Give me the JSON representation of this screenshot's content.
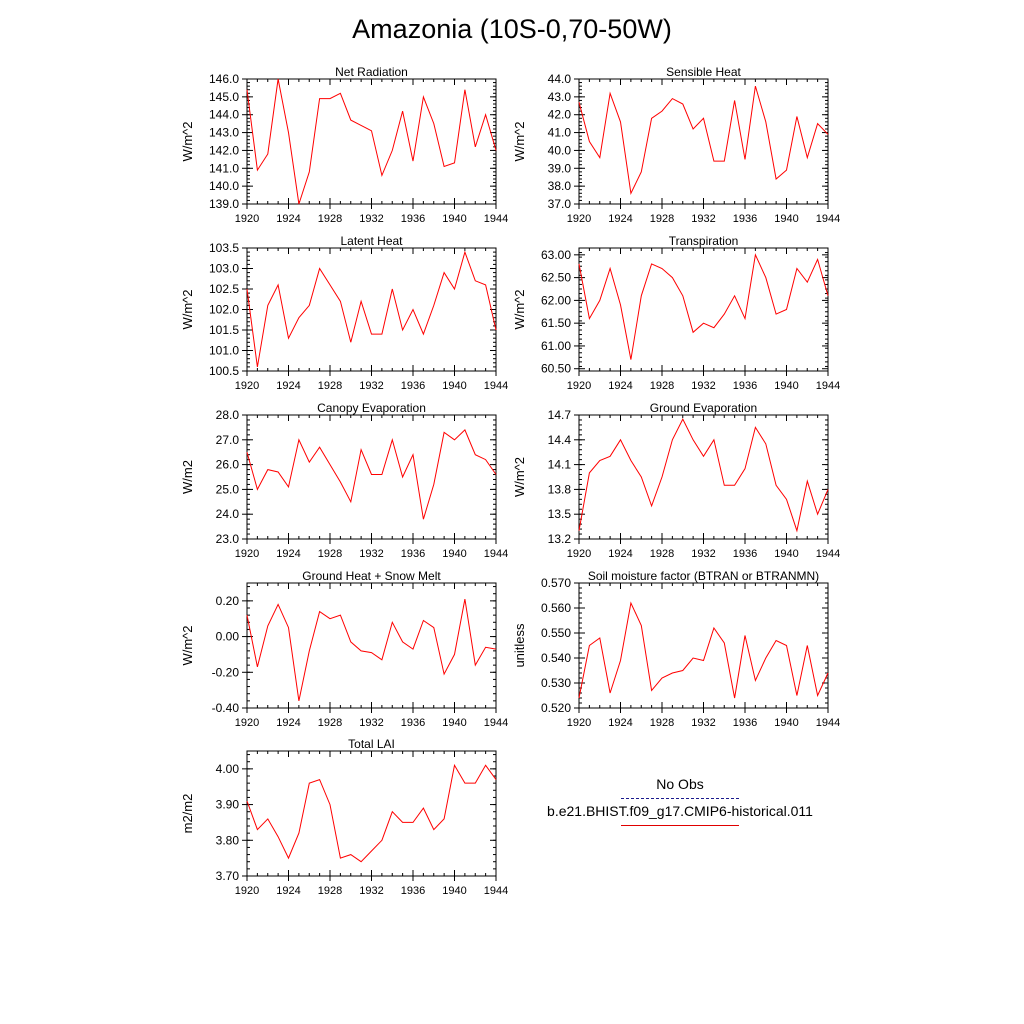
{
  "title": "Amazonia (10S-0,70-50W)",
  "line_color": "#ff0000",
  "obs_color": "#1a1a8c",
  "legend": {
    "obs_label": "No Obs",
    "model_label": "b.e21.BHIST.f09_g17.CMIP6-historical.011"
  },
  "chart_data": [
    {
      "type": "line",
      "title": "Net Radiation",
      "ylabel": "W/m^2",
      "xlim": [
        1920,
        1944
      ],
      "ylim": [
        139.0,
        146.0
      ],
      "xticks": [
        "1920",
        "1924",
        "1928",
        "1932",
        "1936",
        "1940",
        "1944"
      ],
      "yticks": [
        "146.0",
        "145.0",
        "144.0",
        "143.0",
        "142.0",
        "141.0",
        "140.0",
        "139.0"
      ],
      "ytick_values": [
        146,
        145,
        144,
        143,
        142,
        141,
        140,
        139
      ],
      "x": [
        1920,
        1921,
        1922,
        1923,
        1924,
        1925,
        1926,
        1927,
        1928,
        1929,
        1930,
        1931,
        1932,
        1933,
        1934,
        1935,
        1936,
        1937,
        1938,
        1939,
        1940,
        1941,
        1942,
        1943,
        1944
      ],
      "values": [
        145.4,
        140.9,
        141.8,
        146.0,
        143.0,
        139.0,
        140.8,
        144.9,
        144.9,
        145.2,
        143.7,
        143.4,
        143.1,
        140.6,
        142.0,
        144.2,
        141.4,
        145.0,
        143.5,
        141.1,
        141.3,
        145.4,
        142.2,
        144.0,
        142.0
      ]
    },
    {
      "type": "line",
      "title": "Sensible Heat",
      "ylabel": "W/m^2",
      "xlim": [
        1920,
        1944
      ],
      "ylim": [
        37.0,
        44.0
      ],
      "xticks": [
        "1920",
        "1924",
        "1928",
        "1932",
        "1936",
        "1940",
        "1944"
      ],
      "yticks": [
        "44.0",
        "43.0",
        "42.0",
        "41.0",
        "40.0",
        "39.0",
        "38.0",
        "37.0"
      ],
      "ytick_values": [
        44,
        43,
        42,
        41,
        40,
        39,
        38,
        37
      ],
      "x": [
        1920,
        1921,
        1922,
        1923,
        1924,
        1925,
        1926,
        1927,
        1928,
        1929,
        1930,
        1931,
        1932,
        1933,
        1934,
        1935,
        1936,
        1937,
        1938,
        1939,
        1940,
        1941,
        1942,
        1943,
        1944
      ],
      "values": [
        42.7,
        40.5,
        39.6,
        43.2,
        41.6,
        37.6,
        38.8,
        41.8,
        42.2,
        42.9,
        42.6,
        41.2,
        41.8,
        39.4,
        39.4,
        42.8,
        39.5,
        43.6,
        41.6,
        38.4,
        38.9,
        41.9,
        39.6,
        41.5,
        40.9
      ]
    },
    {
      "type": "line",
      "title": "Latent Heat",
      "ylabel": "W/m^2",
      "xlim": [
        1920,
        1944
      ],
      "ylim": [
        100.5,
        103.5
      ],
      "xticks": [
        "1920",
        "1924",
        "1928",
        "1932",
        "1936",
        "1940",
        "1944"
      ],
      "yticks": [
        "103.5",
        "103.0",
        "102.5",
        "102.0",
        "101.5",
        "101.0",
        "100.5"
      ],
      "ytick_values": [
        103.5,
        103.0,
        102.5,
        102.0,
        101.5,
        101.0,
        100.5
      ],
      "x": [
        1920,
        1921,
        1922,
        1923,
        1924,
        1925,
        1926,
        1927,
        1928,
        1929,
        1930,
        1931,
        1932,
        1933,
        1934,
        1935,
        1936,
        1937,
        1938,
        1939,
        1940,
        1941,
        1942,
        1943,
        1944
      ],
      "values": [
        102.5,
        100.6,
        102.1,
        102.6,
        101.3,
        101.8,
        102.1,
        103.0,
        102.6,
        102.2,
        101.2,
        102.2,
        101.4,
        101.4,
        102.5,
        101.5,
        102.0,
        101.4,
        102.1,
        102.9,
        102.5,
        103.4,
        102.7,
        102.6,
        101.5
      ]
    },
    {
      "type": "line",
      "title": "Transpiration",
      "ylabel": "W/m^2",
      "xlim": [
        1920,
        1944
      ],
      "ylim": [
        60.45,
        63.15
      ],
      "xticks": [
        "1920",
        "1924",
        "1928",
        "1932",
        "1936",
        "1940",
        "1944"
      ],
      "yticks": [
        "63.00",
        "62.50",
        "62.00",
        "61.50",
        "61.00",
        "60.50"
      ],
      "ytick_values": [
        63.0,
        62.5,
        62.0,
        61.5,
        61.0,
        60.5
      ],
      "x": [
        1920,
        1921,
        1922,
        1923,
        1924,
        1925,
        1926,
        1927,
        1928,
        1929,
        1930,
        1931,
        1932,
        1933,
        1934,
        1935,
        1936,
        1937,
        1938,
        1939,
        1940,
        1941,
        1942,
        1943,
        1944
      ],
      "values": [
        62.8,
        61.6,
        62.0,
        62.7,
        61.9,
        60.7,
        62.1,
        62.8,
        62.7,
        62.5,
        62.1,
        61.3,
        61.5,
        61.4,
        61.7,
        62.1,
        61.6,
        63.0,
        62.5,
        61.7,
        61.8,
        62.7,
        62.4,
        62.9,
        62.1
      ]
    },
    {
      "type": "line",
      "title": "Canopy Evaporation",
      "ylabel": "W/m2",
      "xlim": [
        1920,
        1944
      ],
      "ylim": [
        23.0,
        28.0
      ],
      "xticks": [
        "1920",
        "1924",
        "1928",
        "1932",
        "1936",
        "1940",
        "1944"
      ],
      "yticks": [
        "28.0",
        "27.0",
        "26.0",
        "25.0",
        "24.0",
        "23.0"
      ],
      "ytick_values": [
        28,
        27,
        26,
        25,
        24,
        23
      ],
      "x": [
        1920,
        1921,
        1922,
        1923,
        1924,
        1925,
        1926,
        1927,
        1928,
        1929,
        1930,
        1931,
        1932,
        1933,
        1934,
        1935,
        1936,
        1937,
        1938,
        1939,
        1940,
        1941,
        1942,
        1943,
        1944
      ],
      "values": [
        26.5,
        25.0,
        25.8,
        25.7,
        25.1,
        27.0,
        26.1,
        26.7,
        26.0,
        25.3,
        24.5,
        26.6,
        25.6,
        25.6,
        27.0,
        25.5,
        26.4,
        23.8,
        25.2,
        27.3,
        27.0,
        27.4,
        26.4,
        26.2,
        25.6
      ]
    },
    {
      "type": "line",
      "title": "Ground Evaporation",
      "ylabel": "W/m^2",
      "xlim": [
        1920,
        1944
      ],
      "ylim": [
        13.2,
        14.7
      ],
      "xticks": [
        "1920",
        "1924",
        "1928",
        "1932",
        "1936",
        "1940",
        "1944"
      ],
      "yticks": [
        "14.7",
        "14.4",
        "14.1",
        "13.8",
        "13.5",
        "13.2"
      ],
      "ytick_values": [
        14.7,
        14.4,
        14.1,
        13.8,
        13.5,
        13.2
      ],
      "x": [
        1920,
        1921,
        1922,
        1923,
        1924,
        1925,
        1926,
        1927,
        1928,
        1929,
        1930,
        1931,
        1932,
        1933,
        1934,
        1935,
        1936,
        1937,
        1938,
        1939,
        1940,
        1941,
        1942,
        1943,
        1944
      ],
      "values": [
        13.3,
        14.0,
        14.15,
        14.2,
        14.4,
        14.15,
        13.95,
        13.6,
        13.95,
        14.4,
        14.65,
        14.4,
        14.2,
        14.4,
        13.85,
        13.85,
        14.05,
        14.55,
        14.35,
        13.85,
        13.68,
        13.3,
        13.9,
        13.5,
        13.8
      ]
    },
    {
      "type": "line",
      "title": "Ground Heat + Snow Melt",
      "ylabel": "W/m^2",
      "xlim": [
        1920,
        1944
      ],
      "ylim": [
        -0.4,
        0.3
      ],
      "xticks": [
        "1920",
        "1924",
        "1928",
        "1932",
        "1936",
        "1940",
        "1944"
      ],
      "yticks": [
        "0.20",
        "0.00",
        "-0.20",
        "-0.40"
      ],
      "ytick_values": [
        0.2,
        0.0,
        -0.2,
        -0.4
      ],
      "x": [
        1920,
        1921,
        1922,
        1923,
        1924,
        1925,
        1926,
        1927,
        1928,
        1929,
        1930,
        1931,
        1932,
        1933,
        1934,
        1935,
        1936,
        1937,
        1938,
        1939,
        1940,
        1941,
        1942,
        1943,
        1944
      ],
      "values": [
        0.12,
        -0.17,
        0.06,
        0.18,
        0.05,
        -0.36,
        -0.08,
        0.14,
        0.1,
        0.12,
        -0.03,
        -0.08,
        -0.09,
        -0.13,
        0.08,
        -0.03,
        -0.07,
        0.09,
        0.05,
        -0.21,
        -0.1,
        0.21,
        -0.16,
        -0.06,
        -0.07
      ]
    },
    {
      "type": "line",
      "title": "Soil moisture factor (BTRAN or BTRANMN)",
      "ylabel": "unitless",
      "xlim": [
        1920,
        1944
      ],
      "ylim": [
        0.52,
        0.57
      ],
      "xticks": [
        "1920",
        "1924",
        "1928",
        "1932",
        "1936",
        "1940",
        "1944"
      ],
      "yticks": [
        "0.570",
        "0.560",
        "0.550",
        "0.540",
        "0.530",
        "0.520"
      ],
      "ytick_values": [
        0.57,
        0.56,
        0.55,
        0.54,
        0.53,
        0.52
      ],
      "x": [
        1920,
        1921,
        1922,
        1923,
        1924,
        1925,
        1926,
        1927,
        1928,
        1929,
        1930,
        1931,
        1932,
        1933,
        1934,
        1935,
        1936,
        1937,
        1938,
        1939,
        1940,
        1941,
        1942,
        1943,
        1944
      ],
      "values": [
        0.524,
        0.545,
        0.548,
        0.526,
        0.539,
        0.562,
        0.553,
        0.527,
        0.532,
        0.534,
        0.535,
        0.54,
        0.539,
        0.552,
        0.546,
        0.524,
        0.549,
        0.531,
        0.54,
        0.547,
        0.545,
        0.525,
        0.545,
        0.525,
        0.534
      ]
    },
    {
      "type": "line",
      "title": "Total LAI",
      "ylabel": "m2/m2",
      "xlim": [
        1920,
        1944
      ],
      "ylim": [
        3.7,
        4.05
      ],
      "xticks": [
        "1920",
        "1924",
        "1928",
        "1932",
        "1936",
        "1940",
        "1944"
      ],
      "yticks": [
        "4.00",
        "3.90",
        "3.80",
        "3.70"
      ],
      "ytick_values": [
        4.0,
        3.9,
        3.8,
        3.7
      ],
      "x": [
        1920,
        1921,
        1922,
        1923,
        1924,
        1925,
        1926,
        1927,
        1928,
        1929,
        1930,
        1931,
        1932,
        1933,
        1934,
        1935,
        1936,
        1937,
        1938,
        1939,
        1940,
        1941,
        1942,
        1943,
        1944
      ],
      "values": [
        3.91,
        3.83,
        3.86,
        3.81,
        3.75,
        3.82,
        3.96,
        3.97,
        3.9,
        3.75,
        3.76,
        3.74,
        3.77,
        3.8,
        3.88,
        3.85,
        3.85,
        3.89,
        3.83,
        3.86,
        4.01,
        3.96,
        3.96,
        4.01,
        3.97
      ]
    }
  ]
}
